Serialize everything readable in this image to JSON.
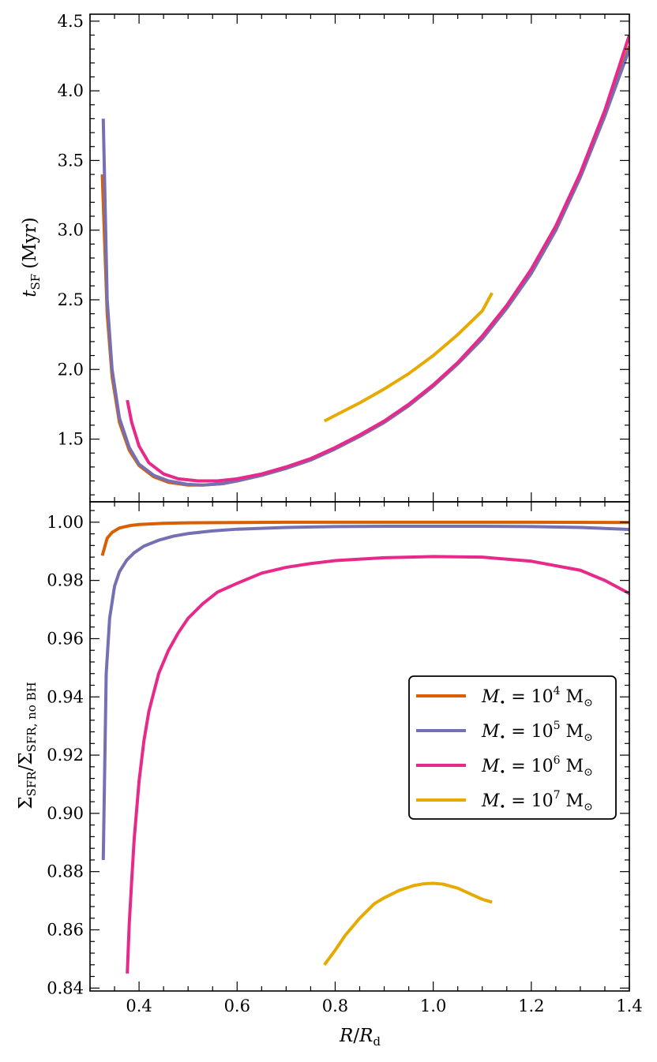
{
  "chart_data": [
    {
      "panel": "top",
      "type": "line",
      "ylabel": "t_SF (Myr)",
      "ylabel_parts": {
        "main": "t",
        "sub": "SF",
        "unit": "(Myr)"
      },
      "xlabel": "",
      "xlim": [
        0.3,
        1.4
      ],
      "ylim": [
        1.05,
        4.55
      ],
      "yticks": [
        1.5,
        2.0,
        2.5,
        3.0,
        3.5,
        4.0,
        4.5
      ],
      "ytick_labels": [
        "1.5",
        "2.0",
        "2.5",
        "3.0",
        "3.5",
        "4.0",
        "4.5"
      ],
      "series": [
        {
          "name": "M• = 10^4 M⊙",
          "color": "#d95f02",
          "x": [
            0.325,
            0.335,
            0.345,
            0.36,
            0.38,
            0.4,
            0.43,
            0.46,
            0.5,
            0.53,
            0.57,
            0.6,
            0.65,
            0.7,
            0.75,
            0.8,
            0.85,
            0.9,
            0.95,
            1.0,
            1.05,
            1.1,
            1.15,
            1.2,
            1.25,
            1.3,
            1.35,
            1.4
          ],
          "y": [
            3.4,
            2.4,
            1.95,
            1.62,
            1.42,
            1.31,
            1.23,
            1.19,
            1.17,
            1.17,
            1.18,
            1.2,
            1.24,
            1.29,
            1.35,
            1.43,
            1.52,
            1.62,
            1.74,
            1.88,
            2.04,
            2.22,
            2.44,
            2.69,
            3.0,
            3.38,
            3.82,
            4.32
          ]
        },
        {
          "name": "M• = 10^5 M⊙",
          "color": "#7570b3",
          "x": [
            0.327,
            0.335,
            0.345,
            0.36,
            0.38,
            0.4,
            0.43,
            0.46,
            0.5,
            0.53,
            0.57,
            0.6,
            0.65,
            0.7,
            0.75,
            0.8,
            0.85,
            0.9,
            0.95,
            1.0,
            1.05,
            1.1,
            1.15,
            1.2,
            1.25,
            1.3,
            1.35,
            1.4
          ],
          "y": [
            3.8,
            2.5,
            2.0,
            1.65,
            1.44,
            1.32,
            1.24,
            1.2,
            1.175,
            1.17,
            1.18,
            1.2,
            1.24,
            1.29,
            1.35,
            1.43,
            1.52,
            1.62,
            1.74,
            1.88,
            2.04,
            2.22,
            2.44,
            2.69,
            3.0,
            3.38,
            3.82,
            4.3
          ]
        },
        {
          "name": "M• = 10^6 M⊙",
          "color": "#e7298a",
          "x": [
            0.376,
            0.385,
            0.4,
            0.42,
            0.45,
            0.48,
            0.52,
            0.56,
            0.6,
            0.65,
            0.7,
            0.75,
            0.8,
            0.85,
            0.9,
            0.95,
            1.0,
            1.05,
            1.1,
            1.15,
            1.2,
            1.25,
            1.3,
            1.35,
            1.4
          ],
          "y": [
            1.78,
            1.62,
            1.45,
            1.33,
            1.25,
            1.215,
            1.2,
            1.2,
            1.215,
            1.25,
            1.3,
            1.36,
            1.44,
            1.53,
            1.63,
            1.75,
            1.89,
            2.05,
            2.24,
            2.46,
            2.72,
            3.03,
            3.41,
            3.86,
            4.4
          ]
        },
        {
          "name": "M• = 10^7 M⊙",
          "color": "#e6ab02",
          "x": [
            0.778,
            0.8,
            0.85,
            0.9,
            0.95,
            1.0,
            1.05,
            1.1,
            1.12
          ],
          "y": [
            1.63,
            1.67,
            1.76,
            1.86,
            1.97,
            2.1,
            2.25,
            2.42,
            2.55
          ]
        }
      ]
    },
    {
      "panel": "bottom",
      "type": "line",
      "ylabel": "Σ_SFR/Σ_SFR, no BH",
      "ylabel_parts": {
        "sigma": "Σ",
        "sub1": "SFR",
        "slash": "/",
        "sub2": "SFR, no BH"
      },
      "xlabel": "R/R_d",
      "xlabel_parts": {
        "main": "R",
        "slash": "/",
        "main2": "R",
        "sub": "d"
      },
      "xlim": [
        0.3,
        1.4
      ],
      "ylim": [
        0.839,
        1.007
      ],
      "xticks": [
        0.4,
        0.6,
        0.8,
        1.0,
        1.2,
        1.4
      ],
      "xtick_labels": [
        "0.4",
        "0.6",
        "0.8",
        "1.0",
        "1.2",
        "1.4"
      ],
      "yticks": [
        0.84,
        0.86,
        0.88,
        0.9,
        0.92,
        0.94,
        0.96,
        0.98,
        1.0
      ],
      "ytick_labels": [
        "0.84",
        "0.86",
        "0.88",
        "0.90",
        "0.92",
        "0.94",
        "0.96",
        "0.98",
        "1.00"
      ],
      "legend": {
        "placement": "center-right",
        "entries": [
          {
            "prefix": "M",
            "sub": "•",
            "eq": " = 10",
            "exp": "4",
            "unit": " M",
            "unit_sub": "⊙",
            "color": "#d95f02"
          },
          {
            "prefix": "M",
            "sub": "•",
            "eq": " = 10",
            "exp": "5",
            "unit": " M",
            "unit_sub": "⊙",
            "color": "#7570b3"
          },
          {
            "prefix": "M",
            "sub": "•",
            "eq": " = 10",
            "exp": "6",
            "unit": " M",
            "unit_sub": "⊙",
            "color": "#e7298a"
          },
          {
            "prefix": "M",
            "sub": "•",
            "eq": " = 10",
            "exp": "7",
            "unit": " M",
            "unit_sub": "⊙",
            "color": "#e6ab02"
          }
        ]
      },
      "series": [
        {
          "name": "M• = 10^4 M⊙",
          "color": "#d95f02",
          "x": [
            0.325,
            0.335,
            0.345,
            0.36,
            0.38,
            0.4,
            0.45,
            0.5,
            0.6,
            0.7,
            0.8,
            1.0,
            1.2,
            1.4
          ],
          "y": [
            0.9885,
            0.9945,
            0.9965,
            0.998,
            0.9988,
            0.9992,
            0.9996,
            0.9998,
            0.9999,
            1.0,
            1.0,
            1.0,
            1.0,
            0.9999
          ]
        },
        {
          "name": "M• = 10^5 M⊙",
          "color": "#7570b3",
          "x": [
            0.327,
            0.333,
            0.34,
            0.35,
            0.36,
            0.375,
            0.39,
            0.41,
            0.44,
            0.47,
            0.5,
            0.55,
            0.6,
            0.7,
            0.8,
            0.9,
            1.0,
            1.1,
            1.2,
            1.3,
            1.4
          ],
          "y": [
            0.884,
            0.948,
            0.967,
            0.978,
            0.983,
            0.987,
            0.9895,
            0.9918,
            0.9938,
            0.9952,
            0.9961,
            0.997,
            0.9976,
            0.9982,
            0.9985,
            0.9986,
            0.9986,
            0.9986,
            0.9985,
            0.9982,
            0.9975
          ]
        },
        {
          "name": "M• = 10^6 M⊙",
          "color": "#e7298a",
          "x": [
            0.376,
            0.38,
            0.385,
            0.39,
            0.4,
            0.41,
            0.42,
            0.44,
            0.46,
            0.48,
            0.5,
            0.53,
            0.56,
            0.6,
            0.65,
            0.7,
            0.75,
            0.8,
            0.9,
            1.0,
            1.1,
            1.2,
            1.3,
            1.35,
            1.4
          ],
          "y": [
            0.845,
            0.862,
            0.877,
            0.891,
            0.911,
            0.925,
            0.935,
            0.948,
            0.956,
            0.962,
            0.967,
            0.972,
            0.976,
            0.979,
            0.9825,
            0.9845,
            0.9858,
            0.9868,
            0.9878,
            0.9882,
            0.988,
            0.9866,
            0.9835,
            0.98,
            0.9755
          ]
        },
        {
          "name": "M• = 10^7 M⊙",
          "color": "#e6ab02",
          "x": [
            0.778,
            0.8,
            0.82,
            0.85,
            0.88,
            0.9,
            0.93,
            0.96,
            0.98,
            1.0,
            1.02,
            1.05,
            1.08,
            1.1,
            1.12
          ],
          "y": [
            0.848,
            0.853,
            0.858,
            0.864,
            0.869,
            0.871,
            0.8735,
            0.8752,
            0.8758,
            0.876,
            0.8757,
            0.8743,
            0.872,
            0.8705,
            0.8695
          ]
        }
      ]
    }
  ]
}
